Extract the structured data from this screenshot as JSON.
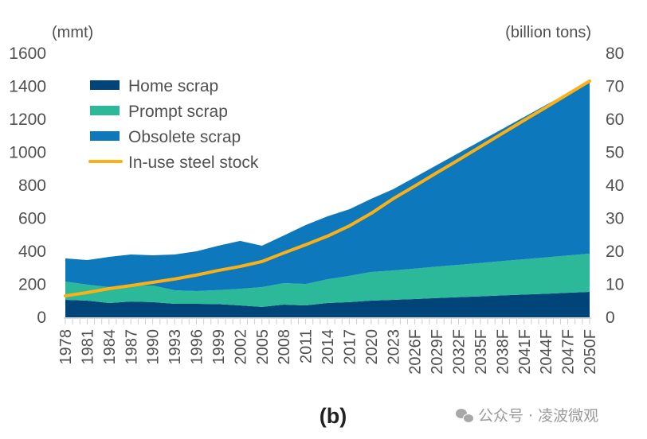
{
  "chart_data": {
    "type": "area",
    "stacked": true,
    "caption": "(b)",
    "left_axis": {
      "unit_label": "(mmt)",
      "ticks": [
        "0",
        "200",
        "400",
        "600",
        "800",
        "1000",
        "1200",
        "1400",
        "1600"
      ],
      "range": [
        0,
        1600
      ]
    },
    "right_axis": {
      "unit_label": "(billion tons)",
      "ticks": [
        "0",
        "10",
        "20",
        "30",
        "40",
        "50",
        "60",
        "70",
        "80"
      ],
      "range": [
        0,
        80
      ]
    },
    "categories": [
      "1978",
      "1981",
      "1984",
      "1987",
      "1990",
      "1993",
      "1996",
      "1999",
      "2002",
      "2005",
      "2008",
      "2011",
      "2014",
      "2017",
      "2020",
      "2023",
      "2026F",
      "2029F",
      "2032F",
      "2035F",
      "2038F",
      "2041F",
      "2044F",
      "2047F",
      "2050F"
    ],
    "x_years": [
      1978,
      1981,
      1984,
      1987,
      1990,
      1993,
      1996,
      1999,
      2002,
      2005,
      2008,
      2011,
      2014,
      2017,
      2020,
      2023,
      2026,
      2029,
      2032,
      2035,
      2038,
      2041,
      2044,
      2047,
      2050
    ],
    "x_range": [
      1978,
      2050
    ],
    "series": [
      {
        "name": "Home scrap",
        "axis": "left",
        "kind": "area",
        "color": "#00457a",
        "values": [
          106,
          101,
          87,
          96,
          92,
          82,
          82,
          80,
          72,
          63,
          77,
          72,
          87,
          92,
          101,
          106,
          111,
          117,
          122,
          127,
          133,
          138,
          143,
          149,
          154
        ]
      },
      {
        "name": "Prompt scrap",
        "axis": "left",
        "kind": "area",
        "color": "#2bb99a",
        "values": [
          111,
          97,
          96,
          97,
          101,
          82,
          77,
          85,
          101,
          120,
          130,
          130,
          144,
          159,
          174,
          178,
          184,
          190,
          196,
          202,
          208,
          214,
          220,
          226,
          232
        ]
      },
      {
        "name": "Obsolete scrap",
        "axis": "left",
        "kind": "area",
        "color": "#0e78bd",
        "values": [
          140,
          149,
          183,
          188,
          183,
          217,
          241,
          269,
          290,
          251,
          289,
          357,
          381,
          404,
          443,
          492,
          554,
          615,
          677,
          739,
          800,
          862,
          924,
          983,
          1045
        ]
      },
      {
        "name": "In-use steel stock",
        "axis": "right",
        "kind": "line",
        "color": "#fbb116",
        "values": [
          6.5,
          7.5,
          8.7,
          9.6,
          10.6,
          11.6,
          12.8,
          14.2,
          15.4,
          16.9,
          19.5,
          22.0,
          24.6,
          27.7,
          31.5,
          35.9,
          39.8,
          43.8,
          47.7,
          51.7,
          55.7,
          59.7,
          63.6,
          67.6,
          71.6
        ]
      }
    ],
    "legend": {
      "placement": "top-left",
      "entries": [
        "Home scrap",
        "Prompt scrap",
        "Obsolete scrap",
        "In-use steel stock"
      ]
    },
    "grid": false
  },
  "watermark": "公众号 · 凌波微观"
}
